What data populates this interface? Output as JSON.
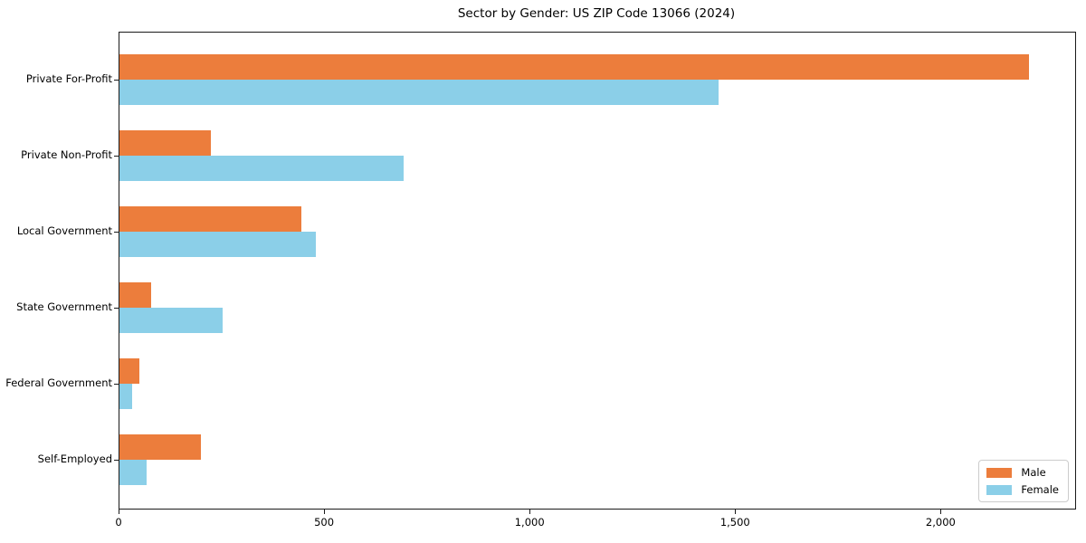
{
  "title": "Sector by Gender: US ZIP Code 13066 (2024)",
  "colors": {
    "male": "#ec7d3c",
    "female": "#8bcfe8",
    "axis": "#1a1a1a",
    "background": "#ffffff"
  },
  "chart_data": {
    "type": "bar",
    "orientation": "horizontal",
    "title": "Sector by Gender: US ZIP Code 13066 (2024)",
    "xlabel": "",
    "ylabel": "",
    "categories": [
      "Private For-Profit",
      "Private Non-Profit",
      "Local Government",
      "State Government",
      "Federal Government",
      "Self-Employed"
    ],
    "series": [
      {
        "name": "Male",
        "color": "#ec7d3c",
        "values": [
          2213,
          222,
          442,
          77,
          49,
          198
        ]
      },
      {
        "name": "Female",
        "color": "#8bcfe8",
        "values": [
          1458,
          691,
          478,
          251,
          31,
          66
        ]
      }
    ],
    "xlim": [
      0,
      2325
    ],
    "xticks": [
      0,
      500,
      1000,
      1500,
      2000
    ],
    "xtick_labels": [
      "0",
      "500",
      "1,000",
      "1,500",
      "2,000"
    ],
    "grid": false,
    "legend_position": "lower right"
  },
  "legend": {
    "items": [
      {
        "label": "Male",
        "color": "#ec7d3c"
      },
      {
        "label": "Female",
        "color": "#8bcfe8"
      }
    ]
  }
}
